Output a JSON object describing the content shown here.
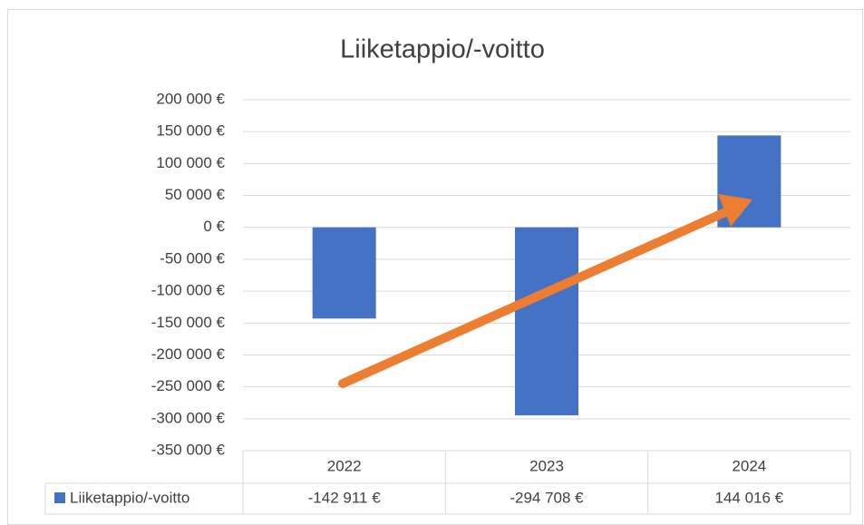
{
  "chart_data": {
    "type": "bar",
    "title": "Liiketappio/-voitto",
    "categories": [
      "2022",
      "2023",
      "2024"
    ],
    "series": [
      {
        "name": "Liiketappio/-voitto",
        "color": "#4472c4",
        "values": [
          -142911,
          -294708,
          144016
        ],
        "value_labels": [
          "-142 911 €",
          "-294 708 €",
          "144 016 €"
        ]
      }
    ],
    "ylim": [
      -350000,
      200000
    ],
    "yticks": [
      {
        "value": -350000,
        "label": "-350 000 €"
      },
      {
        "value": -300000,
        "label": "-300 000 €"
      },
      {
        "value": -250000,
        "label": "-250 000 €"
      },
      {
        "value": -200000,
        "label": "-200 000 €"
      },
      {
        "value": -150000,
        "label": "-150 000 €"
      },
      {
        "value": -100000,
        "label": "-100 000 €"
      },
      {
        "value": -50000,
        "label": "-50 000 €"
      },
      {
        "value": 0,
        "label": "0 €"
      },
      {
        "value": 50000,
        "label": "50 000 €"
      },
      {
        "value": 100000,
        "label": "100 000 €"
      },
      {
        "value": 150000,
        "label": "150 000 €"
      },
      {
        "value": 200000,
        "label": "200 000 €"
      }
    ],
    "grid": true,
    "data_table": true
  }
}
